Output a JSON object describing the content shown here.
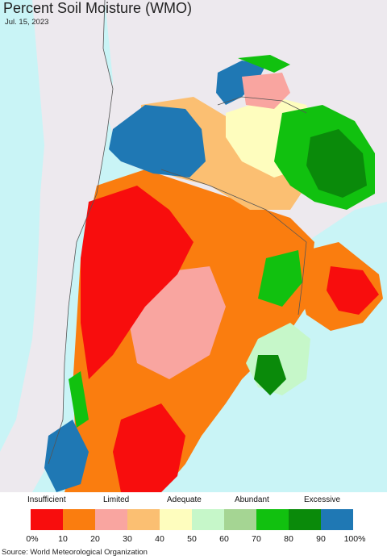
{
  "title": "Percent Soil Moisture (WMO)",
  "date": "Jul. 15, 2023",
  "legend": {
    "categories": [
      "Insufficient",
      "Limited",
      "Adequate",
      "Abundant",
      "Excessive"
    ],
    "ticks": [
      "0%",
      "10",
      "20",
      "30",
      "40",
      "50",
      "60",
      "70",
      "80",
      "90",
      "100%"
    ],
    "colors": [
      "#f80d0d",
      "#fa7d0f",
      "#f9a5a0",
      "#fbbf72",
      "#fefdbe",
      "#c6f7c9",
      "#a5d593",
      "#11c10f",
      "#0a8a0a",
      "#1f78b4"
    ]
  },
  "source": "Source: World Meteorological Organization"
}
